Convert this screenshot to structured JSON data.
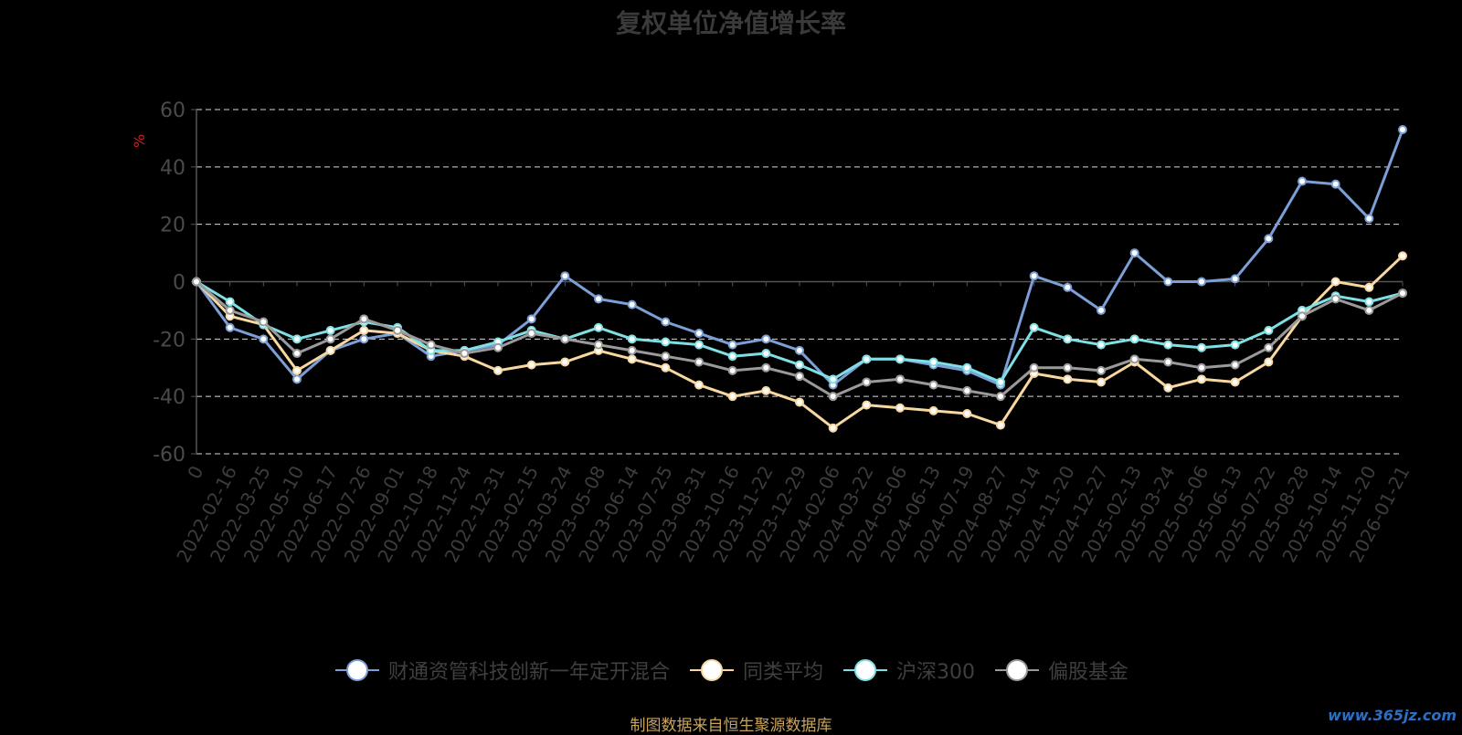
{
  "chart_data": {
    "type": "line",
    "title": "复权单位净值增长率",
    "ylabel": "%",
    "ylim": [
      -60,
      60
    ],
    "yticks": [
      60,
      40,
      20,
      0,
      -20,
      -40,
      -60
    ],
    "grid": true,
    "legend_position": "bottom",
    "x_tick_labels": [
      "0",
      "2022-02-16",
      "2022-03-25",
      "2022-05-10",
      "2022-06-17",
      "2022-07-26",
      "2022-09-01",
      "2022-10-18",
      "2022-11-24",
      "2022-12-31",
      "2023-02-15",
      "2023-03-24",
      "2023-05-08",
      "2023-06-14",
      "2023-07-25",
      "2023-08-31",
      "2023-10-16",
      "2023-11-22",
      "2023-12-29",
      "2024-02-06",
      "2024-03-22",
      "2024-05-06",
      "2024-06-13",
      "2024-07-19",
      "2024-08-27",
      "2024-10-14",
      "2024-11-20",
      "2024-12-27",
      "2025-02-13",
      "2025-03-24",
      "2025-05-06",
      "2025-06-13",
      "2025-07-22",
      "2025-08-28",
      "2025-10-14",
      "2025-11-20",
      "2026-01-21"
    ],
    "x": [
      "0",
      "2022-02-16",
      "2022-03-25",
      "2022-05-10",
      "2022-06-17",
      "2022-07-26",
      "2022-09-01",
      "2022-10-18",
      "2022-11-24",
      "2022-12-31",
      "2023-02-15",
      "2023-03-24",
      "2023-05-08",
      "2023-06-14",
      "2023-07-25",
      "2023-08-31",
      "2023-10-16",
      "2023-11-22",
      "2023-12-29",
      "2024-02-06",
      "2024-03-22",
      "2024-05-06",
      "2024-06-13",
      "2024-07-19",
      "2024-08-27",
      "2024-10-14",
      "2024-11-20",
      "2024-12-27",
      "2025-02-13",
      "2025-03-24",
      "2025-05-06",
      "2025-06-13",
      "2025-07-22",
      "2025-08-28",
      "2025-10-14",
      "2025-11-20",
      "2026-01-21"
    ],
    "series": [
      {
        "name": "财通资管科技创新一年定开混合",
        "color": "#7b9fd6",
        "values": [
          0,
          -16,
          -20,
          -34,
          -24,
          -20,
          -18,
          -26,
          -24,
          -22,
          -13,
          2,
          -6,
          -8,
          -14,
          -18,
          -22,
          -20,
          -24,
          -36,
          -27,
          -27,
          -29,
          -31,
          -36,
          2,
          -2,
          -10,
          10,
          0,
          0,
          1,
          15,
          35,
          34,
          22,
          53
        ]
      },
      {
        "name": "同类平均",
        "color": "#f8d8a0",
        "values": [
          0,
          -12,
          -15,
          -31,
          -24,
          -17,
          -18,
          -24,
          -26,
          -31,
          -29,
          -28,
          -24,
          -27,
          -30,
          -36,
          -40,
          -38,
          -42,
          -51,
          -43,
          -44,
          -45,
          -46,
          -50,
          -32,
          -34,
          -35,
          -28,
          -37,
          -34,
          -35,
          -28,
          -12,
          0,
          -2,
          9
        ]
      },
      {
        "name": "沪深300",
        "color": "#7ee0e5",
        "values": [
          0,
          -7,
          -15,
          -20,
          -17,
          -14,
          -16,
          -24,
          -24,
          -21,
          -17,
          -20,
          -16,
          -20,
          -21,
          -22,
          -26,
          -25,
          -29,
          -34,
          -27,
          -27,
          -28,
          -30,
          -35,
          -16,
          -20,
          -22,
          -20,
          -22,
          -23,
          -22,
          -17,
          -10,
          -5,
          -7,
          -4
        ]
      },
      {
        "name": "偏股基金",
        "color": "#9a9a9a",
        "values": [
          0,
          -10,
          -14,
          -25,
          -20,
          -13,
          -17,
          -22,
          -25,
          -23,
          -18,
          -20,
          -22,
          -24,
          -26,
          -28,
          -31,
          -30,
          -33,
          -40,
          -35,
          -34,
          -36,
          -38,
          -40,
          -30,
          -30,
          -31,
          -27,
          -28,
          -30,
          -29,
          -23,
          -12,
          -6,
          -10,
          -4
        ]
      }
    ]
  },
  "source_text": "制图数据来自恒生聚源数据库",
  "watermark_text": "www.365jz.com"
}
